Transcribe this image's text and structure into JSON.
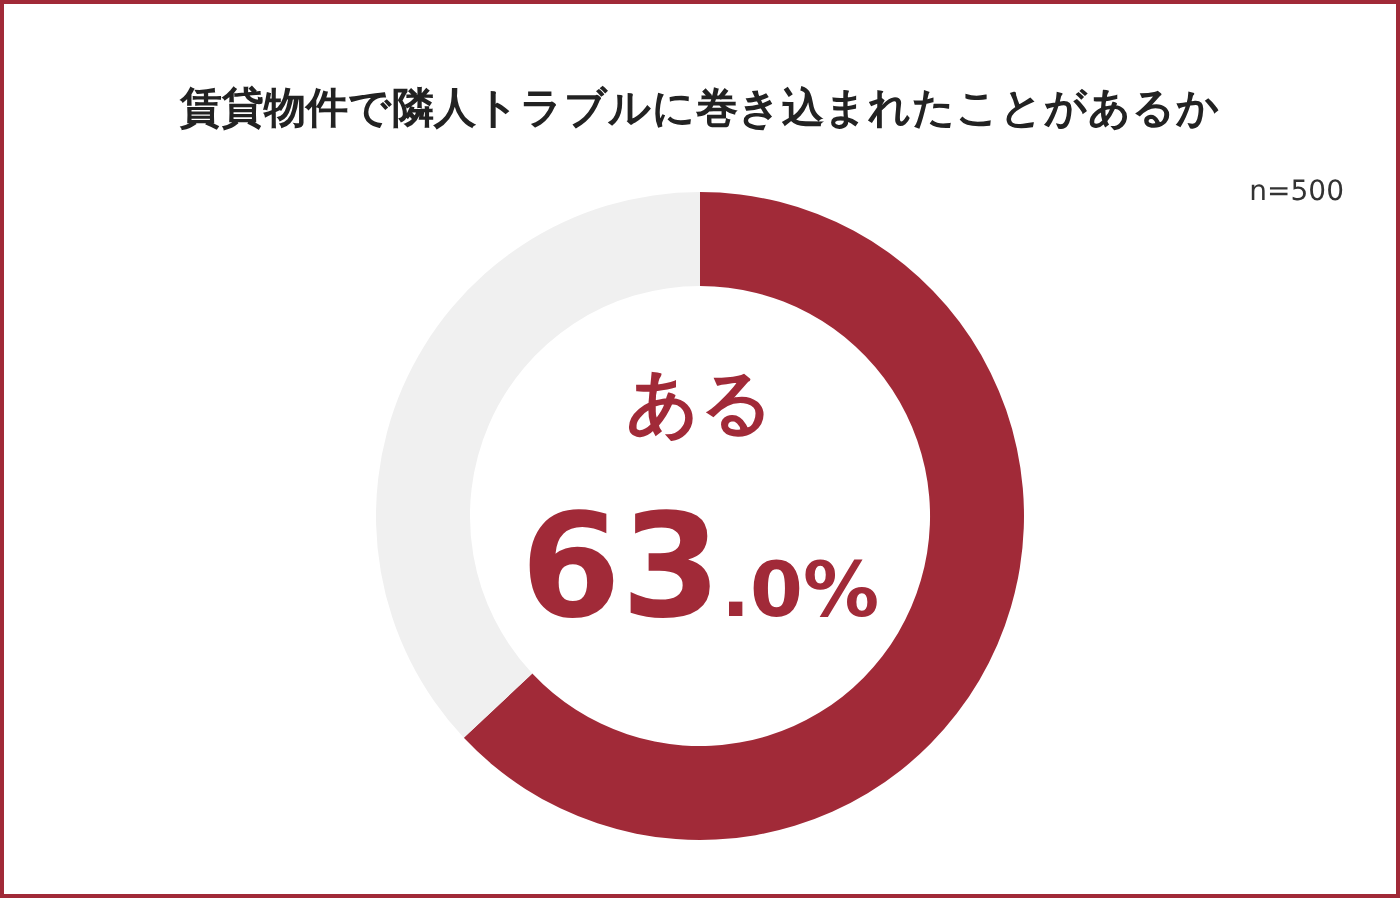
{
  "chart_data": {
    "type": "donut",
    "title": "賃貸物件で隣人トラブルに巻き込まれたことがあるか",
    "annotations": [
      "n=500"
    ],
    "categories": [
      "ある",
      null
    ],
    "values": [
      63.0,
      37.0
    ],
    "colors": [
      "#a12a38",
      "#f0f0f0"
    ],
    "value_labels": [
      "63.0%",
      null
    ],
    "legend": false
  }
}
